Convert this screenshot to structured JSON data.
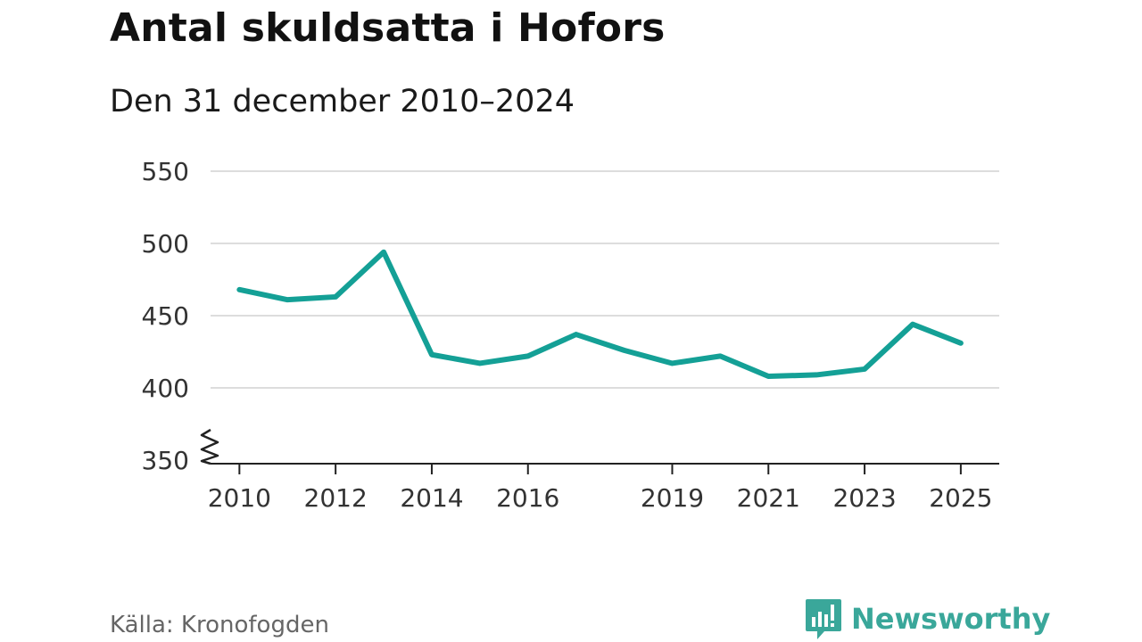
{
  "header": {
    "title": "Antal skuldsatta i Hofors",
    "subtitle": "Den 31 december 2010–2024"
  },
  "footer": {
    "source": "Källa: Kronofogden",
    "brand": "Newsworthy"
  },
  "colors": {
    "line": "#14a096",
    "grid": "#dddddd",
    "brand": "#3aa79a"
  },
  "chart_data": {
    "type": "line",
    "title": "Antal skuldsatta i Hofors",
    "subtitle": "Den 31 december 2010–2024",
    "xlabel": "",
    "ylabel": "",
    "x": [
      2010,
      2011,
      2012,
      2013,
      2014,
      2015,
      2016,
      2017,
      2018,
      2019,
      2020,
      2021,
      2022,
      2023,
      2024,
      2025
    ],
    "series": [
      {
        "values": [
          468,
          461,
          463,
          494,
          423,
          417,
          422,
          437,
          426,
          417,
          422,
          408,
          409,
          413,
          444,
          431
        ]
      }
    ],
    "xlim": [
      2009.4,
      2025.8
    ],
    "ylim": [
      350,
      550
    ],
    "y_ticks": [
      350,
      400,
      450,
      500,
      550
    ],
    "x_ticks": [
      2010,
      2012,
      2014,
      2016,
      2019,
      2021,
      2023,
      2025
    ],
    "y_axis_break": true,
    "grid": true,
    "legend": "none"
  }
}
